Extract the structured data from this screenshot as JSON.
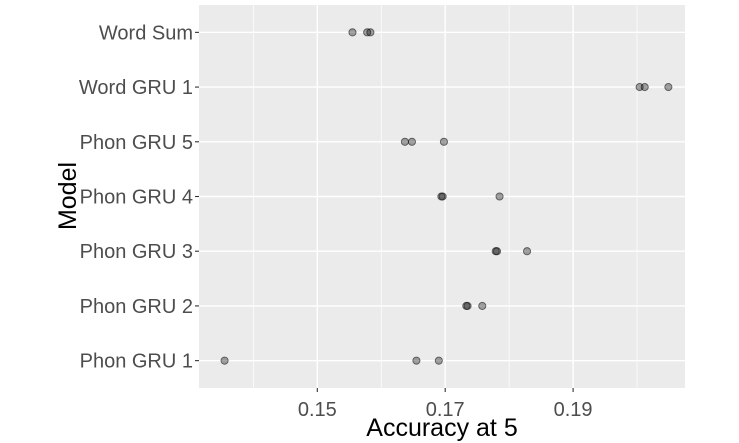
{
  "chart_data": {
    "type": "scatter",
    "title": "",
    "xlabel": "Accuracy at 5",
    "ylabel": "Model",
    "xlim": [
      0.1315,
      0.2075
    ],
    "xticks": [
      0.15,
      0.17,
      0.19
    ],
    "xtick_labels": [
      "0.15",
      "0.17",
      "0.19"
    ],
    "grid": true,
    "categories": [
      "Word Sum",
      "Word GRU 1",
      "Phon GRU 5",
      "Phon GRU 4",
      "Phon GRU 3",
      "Phon GRU 2",
      "Phon GRU 1"
    ],
    "points": [
      {
        "model": "Word Sum",
        "values": [
          0.1555,
          0.1578,
          0.1583
        ]
      },
      {
        "model": "Word GRU 1",
        "values": [
          0.2004,
          0.2012,
          0.2049
        ]
      },
      {
        "model": "Phon GRU 5",
        "values": [
          0.1637,
          0.1648,
          0.1698
        ]
      },
      {
        "model": "Phon GRU 4",
        "values": [
          0.1694,
          0.1696,
          0.1785
        ]
      },
      {
        "model": "Phon GRU 3",
        "values": [
          0.1779,
          0.1781,
          0.1828
        ]
      },
      {
        "model": "Phon GRU 2",
        "values": [
          0.1733,
          0.1735,
          0.1758
        ]
      },
      {
        "model": "Phon GRU 1",
        "values": [
          0.1355,
          0.1655,
          0.169
        ]
      }
    ],
    "colors": {
      "panel": "#ebebeb",
      "grid": "#ffffff",
      "point": "#000000"
    }
  }
}
